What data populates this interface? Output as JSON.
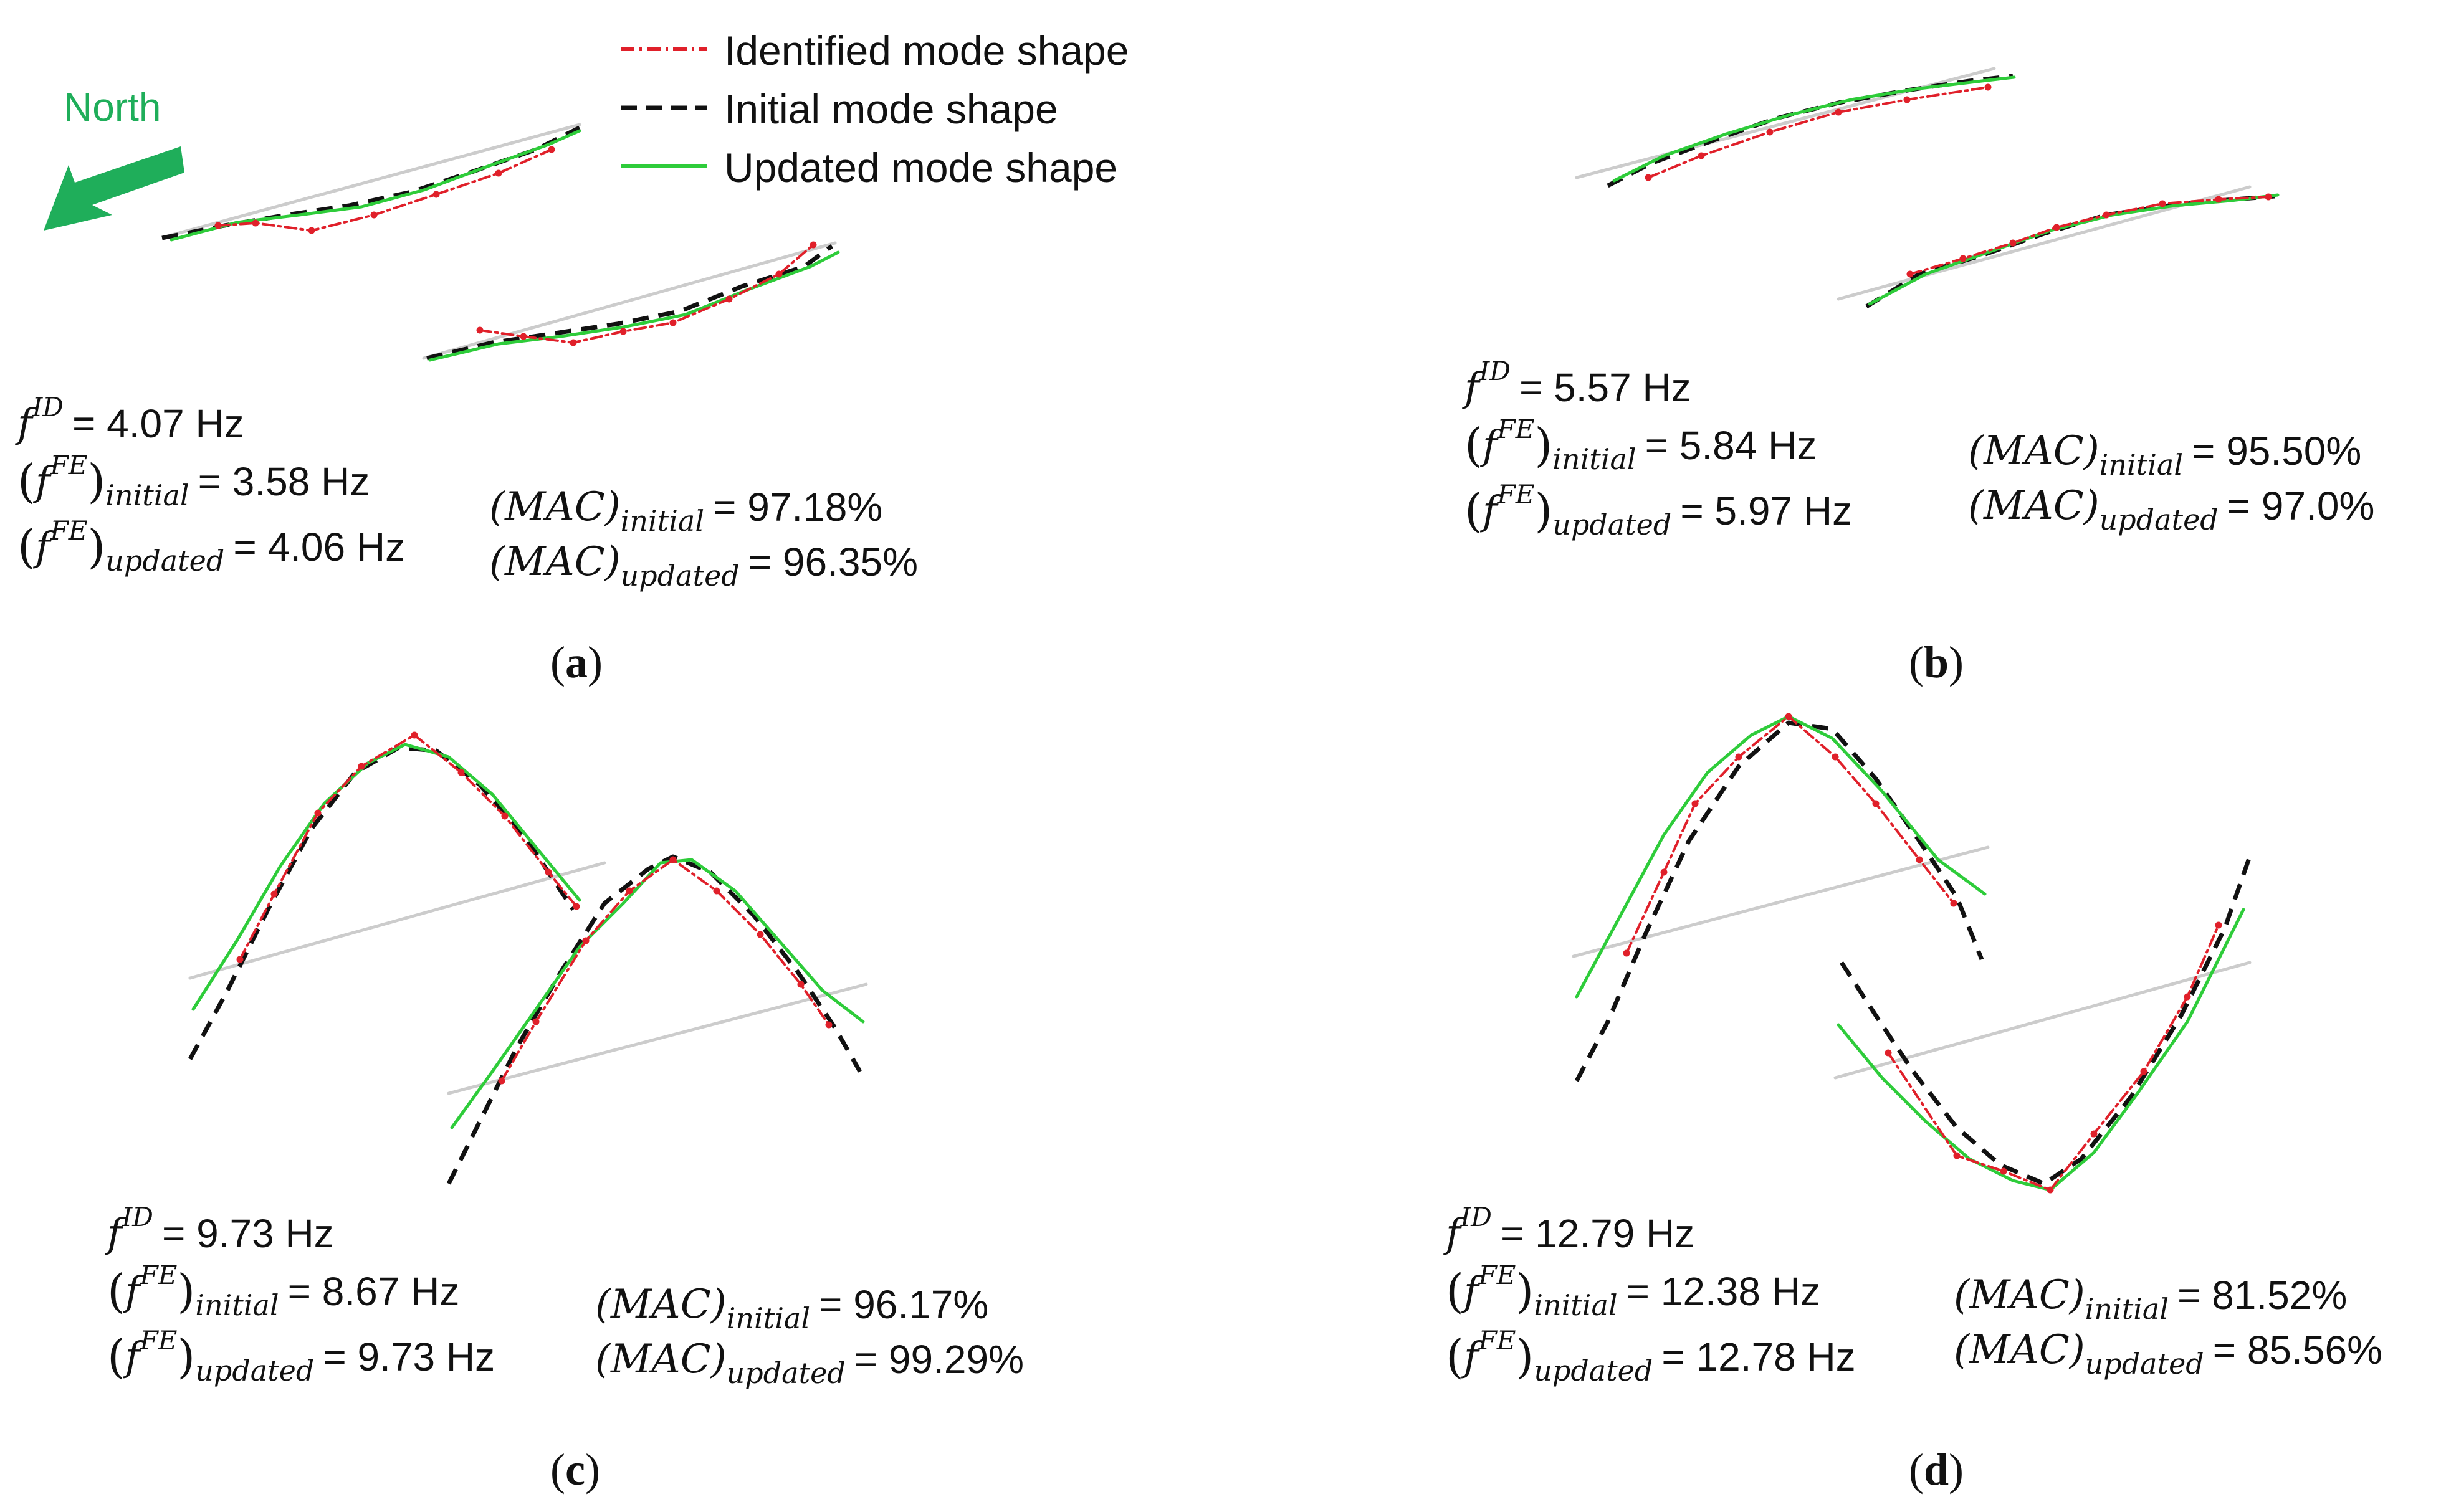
{
  "legend": {
    "identified": "Identified mode shape",
    "initial": "Initial mode shape",
    "updated": "Updated mode shape"
  },
  "north_label": "North",
  "colors": {
    "identified": "#e0202a",
    "initial": "#111111",
    "updated": "#2ecc3a",
    "reference": "#cccccc",
    "north_arrow": "#1fae5a"
  },
  "symbols": {
    "f": "f",
    "ID": "ID",
    "FE": "FE",
    "MAC": "MAC",
    "initial": "initial",
    "updated": "updated"
  },
  "panels": [
    {
      "label": "a",
      "f_id": "= 4.07 Hz",
      "f_fe_initial": "= 3.58 Hz",
      "f_fe_updated": "= 4.06 Hz",
      "mac_initial": "= 97.18%",
      "mac_updated": "= 96.35%"
    },
    {
      "label": "b",
      "f_id": "= 5.57 Hz",
      "f_fe_initial": "= 5.84 Hz",
      "f_fe_updated": "= 5.97 Hz",
      "mac_initial": "= 95.50%",
      "mac_updated": "= 97.0%"
    },
    {
      "label": "c",
      "f_id": "= 9.73 Hz",
      "f_fe_initial": "= 8.67 Hz",
      "f_fe_updated": "= 9.73 Hz",
      "mac_initial": "= 96.17%",
      "mac_updated": "= 99.29%"
    },
    {
      "label": "d",
      "f_id": "= 12.79 Hz",
      "f_fe_initial": "= 12.38 Hz",
      "f_fe_updated": "= 12.78 Hz",
      "mac_initial": "= 81.52%",
      "mac_updated": "= 85.56%"
    }
  ]
}
